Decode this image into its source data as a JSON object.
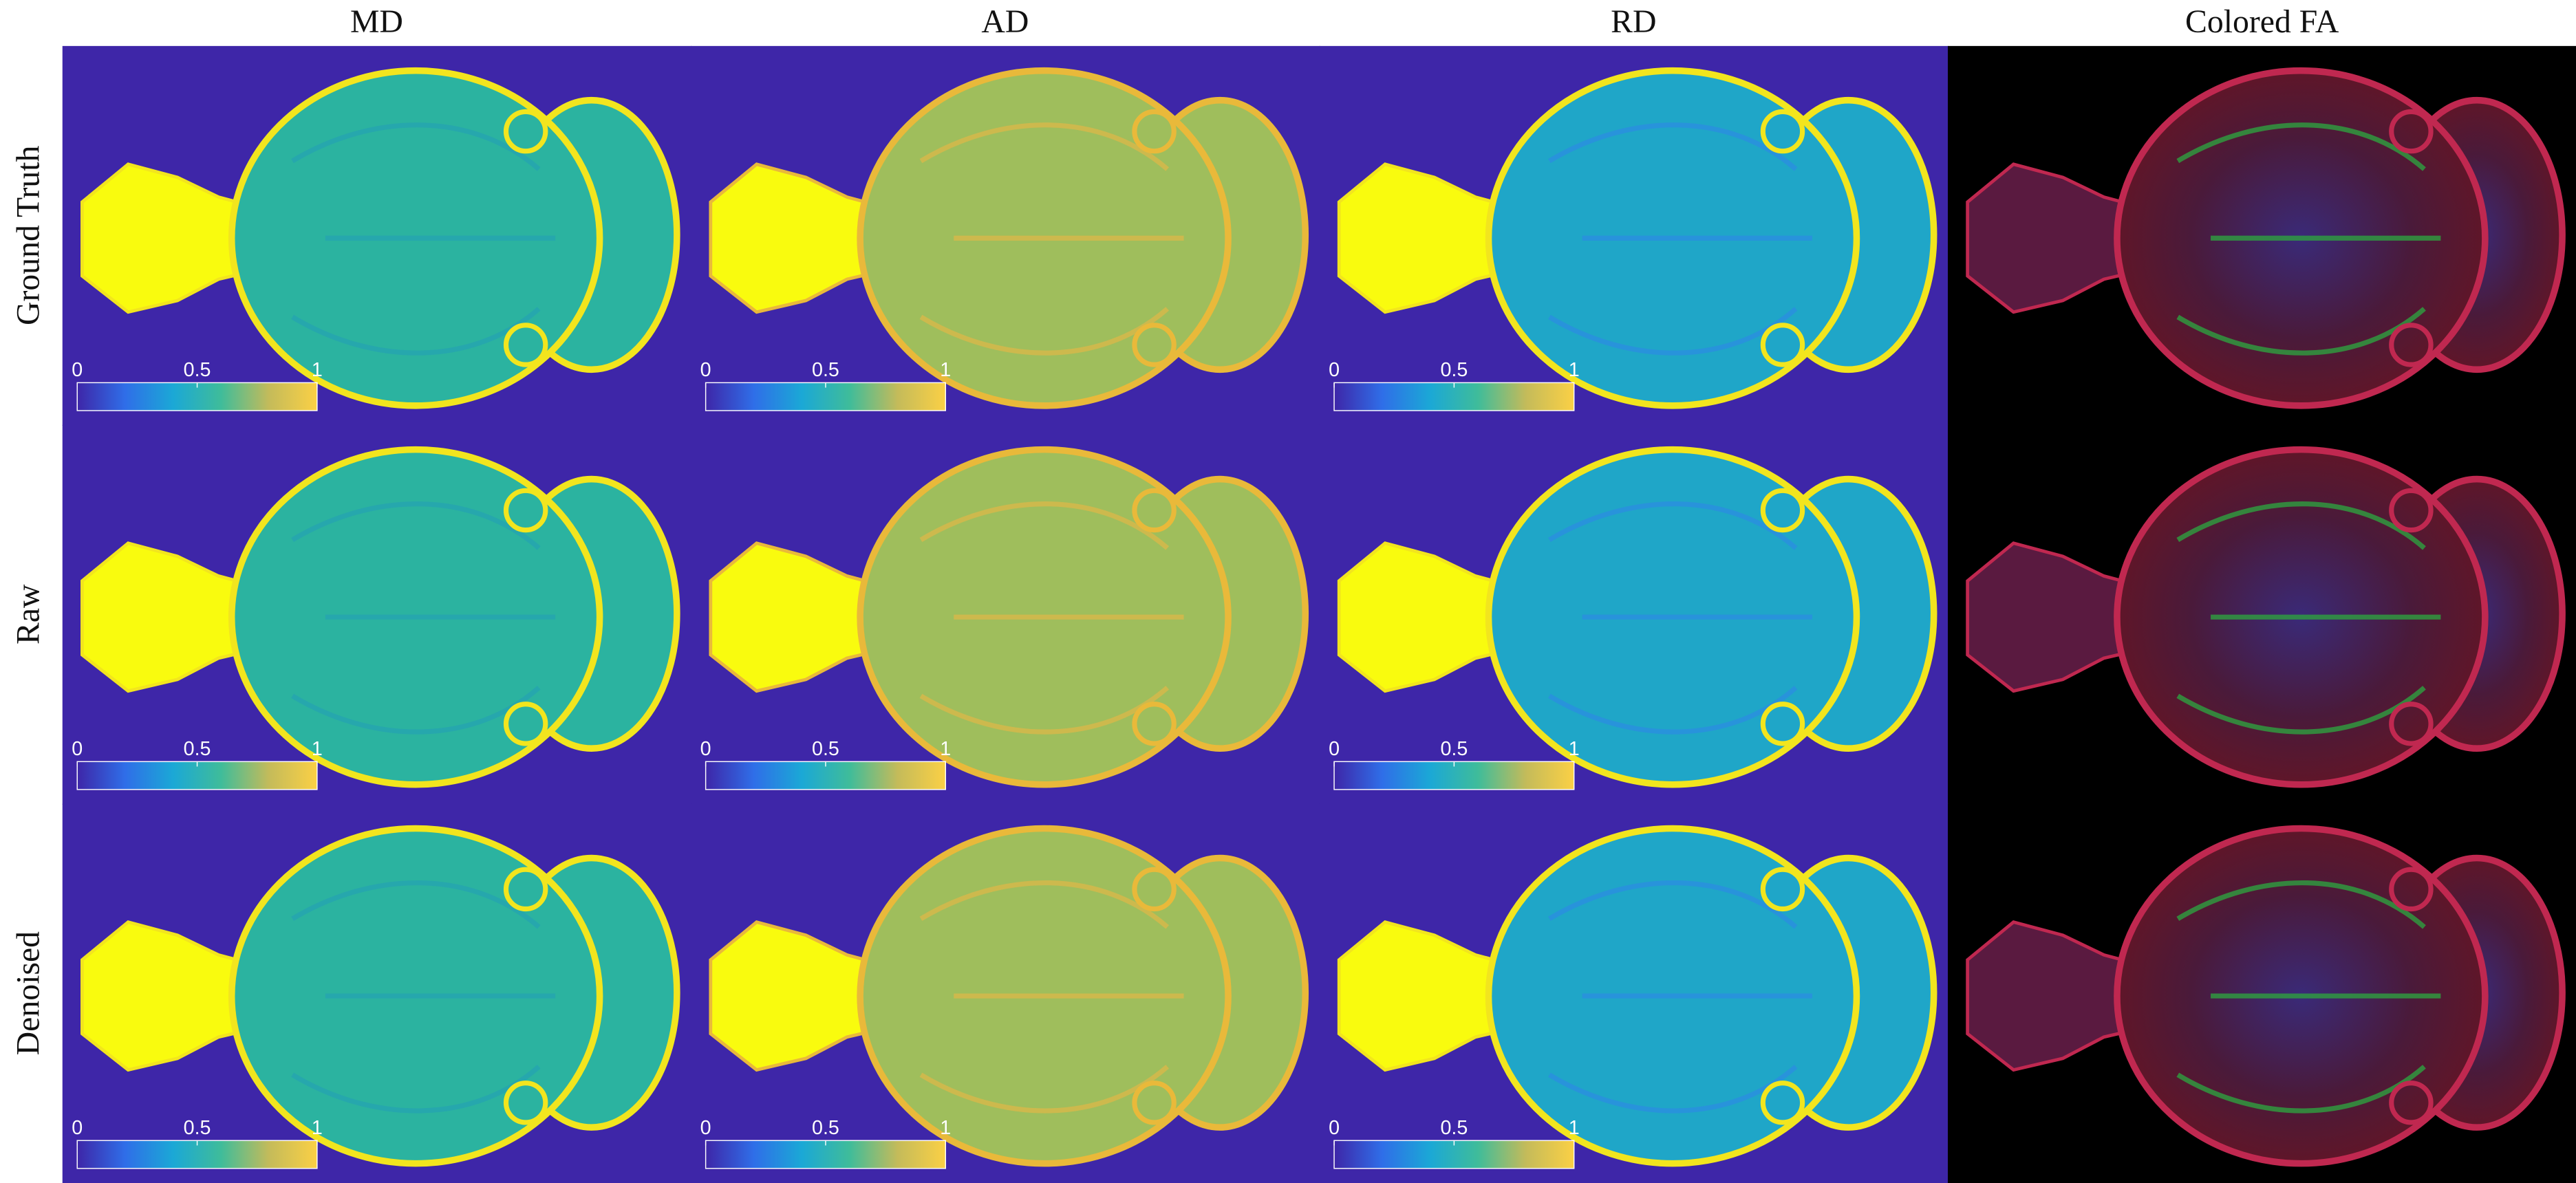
{
  "columns": [
    "MD",
    "AD",
    "RD",
    "Colored FA"
  ],
  "rows": [
    "Ground Truth",
    "Raw",
    "Denoised"
  ],
  "colorbar": {
    "ticks": [
      0,
      0.5,
      1
    ]
  }
}
